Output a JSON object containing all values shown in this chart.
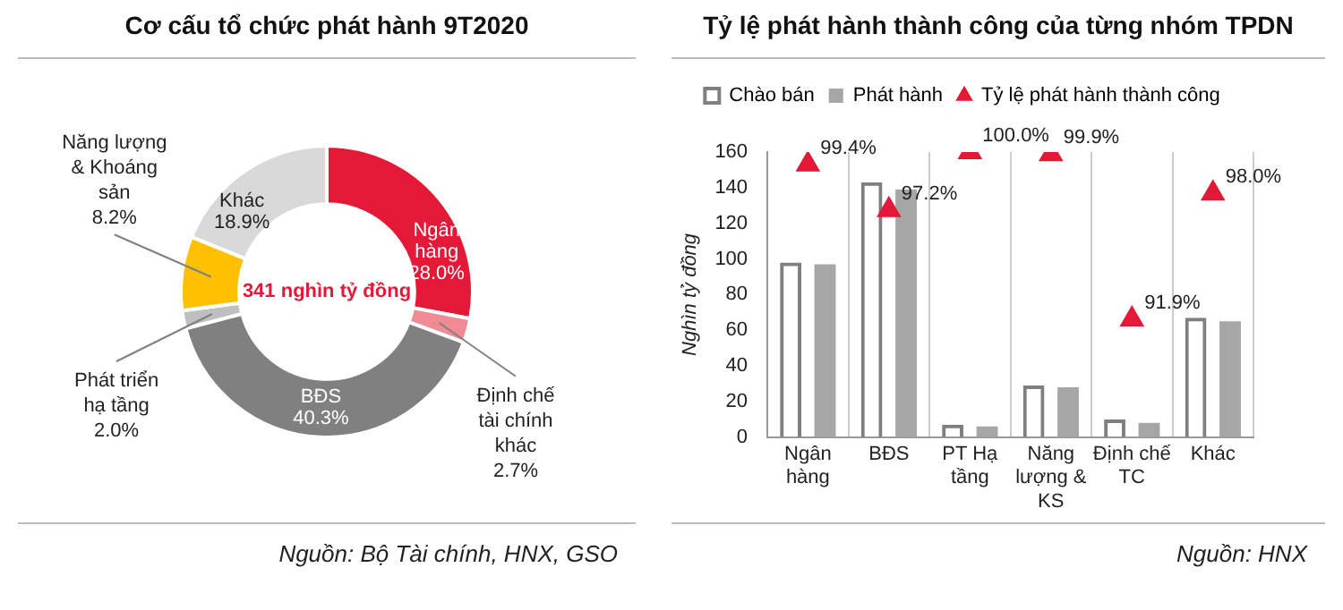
{
  "chart_data": [
    {
      "type": "donut",
      "title": "Cơ cấu tổ chức phát hành 9T2020",
      "categories": [
        "Ngân hàng",
        "Định chế tài chính khác",
        "BĐS",
        "Phát triển hạ tầng",
        "Năng lượng & Khoáng sản",
        "Khác"
      ],
      "values": [
        28.0,
        2.7,
        40.3,
        2.0,
        8.2,
        18.9
      ],
      "value_labels": [
        "28.0%",
        "2.7%",
        "40.3%",
        "2.0%",
        "8.2%",
        "18.9%"
      ],
      "colors": [
        "#e31937",
        "#f08a95",
        "#808080",
        "#bfbfbf",
        "#ffc000",
        "#d9d9d9"
      ],
      "annotations": [
        "341 nghìn tỷ đồng",
        "Nguồn: Bộ Tài chính, HNX, GSO"
      ],
      "legend": false
    },
    {
      "type": "bar",
      "title": "Tỷ lệ phát hành thành công của từng nhóm TPDN",
      "ylabel": "Nghìn tỷ đồng",
      "categories": [
        "Ngân hàng",
        "BĐS",
        "PT Hạ tầng",
        "Năng lượng & KS",
        "Định chế TC",
        "Khác"
      ],
      "series": [
        {
          "name": "Chào bán",
          "color": "#7f7f7f",
          "values": [
            98,
            143,
            7,
            29,
            10,
            67
          ]
        },
        {
          "name": "Phát hành",
          "color": "#a6a6a6",
          "values": [
            97,
            139,
            6,
            28,
            8,
            65
          ]
        },
        {
          "name": "Tỷ lệ phát hành thành công",
          "type": "scatter",
          "axis": "y2",
          "marker": "triangle",
          "color": "#e31937",
          "values": [
            99.4,
            97.2,
            100.0,
            99.9,
            91.9,
            98.0
          ],
          "value_labels": [
            "99.4%",
            "97.2%",
            "100.0%",
            "99.9%",
            "91.9%",
            "98.0%"
          ]
        }
      ],
      "ylim": [
        0,
        160
      ],
      "yticks": [
        0,
        20,
        40,
        60,
        80,
        100,
        120,
        140,
        160
      ],
      "y2lim": [
        86.2,
        100
      ],
      "tick_labels": "xy",
      "grid": "x",
      "legend": "top",
      "annotations": [
        "Nguồn: HNX"
      ]
    }
  ]
}
